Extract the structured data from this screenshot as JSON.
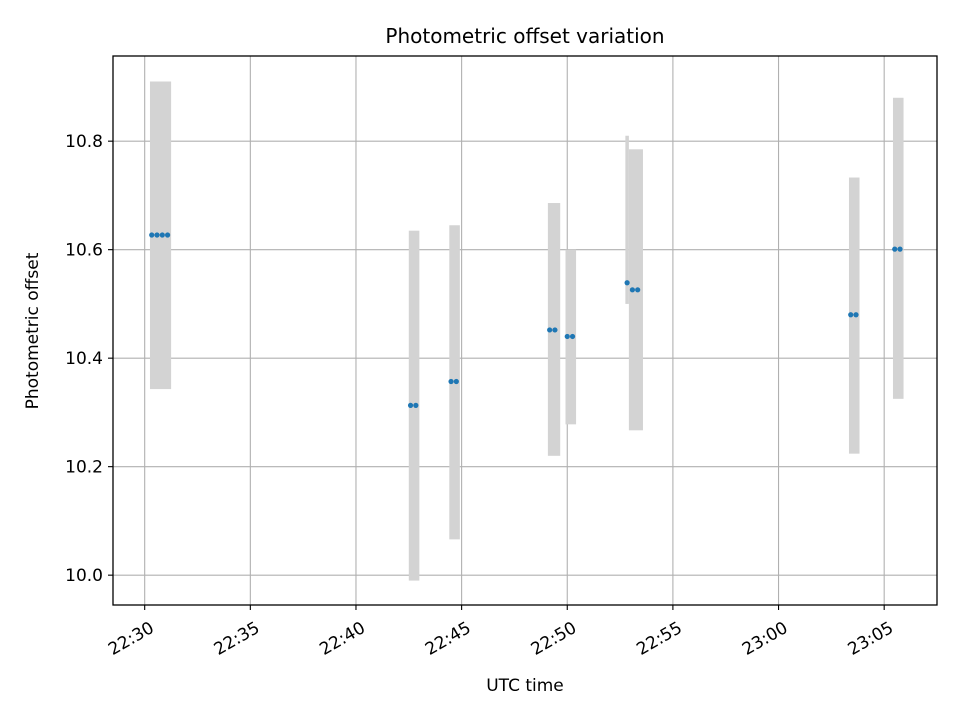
{
  "chart_data": {
    "type": "scatter",
    "title": "Photometric offset variation",
    "xlabel": "UTC time",
    "ylabel": "Photometric offset",
    "x_axis_type": "time",
    "xlim": [
      "22:28:30",
      "23:07:30"
    ],
    "ylim": [
      9.945,
      10.957
    ],
    "x_ticks": [
      "22:30",
      "22:35",
      "22:40",
      "22:45",
      "22:50",
      "22:55",
      "23:00",
      "23:05"
    ],
    "y_ticks": [
      "10.0",
      "10.2",
      "10.4",
      "10.6",
      "10.8"
    ],
    "grid": true,
    "colors": {
      "points": "#1f77b4",
      "uncertainty_band": "#d3d3d3"
    },
    "uncertainty_bands": [
      {
        "x_start": "22:30:15",
        "x_end": "22:31:15",
        "y_low": 10.343,
        "y_high": 10.91
      },
      {
        "x_start": "22:42:30",
        "x_end": "22:43:00",
        "y_low": 9.99,
        "y_high": 10.635
      },
      {
        "x_start": "22:44:25",
        "x_end": "22:44:55",
        "y_low": 10.066,
        "y_high": 10.645
      },
      {
        "x_start": "22:49:05",
        "x_end": "22:49:40",
        "y_low": 10.22,
        "y_high": 10.686
      },
      {
        "x_start": "22:49:55",
        "x_end": "22:50:25",
        "y_low": 10.278,
        "y_high": 10.6
      },
      {
        "x_start": "22:52:45",
        "x_end": "22:52:55",
        "y_low": 10.5,
        "y_high": 10.81
      },
      {
        "x_start": "22:52:55",
        "x_end": "22:53:35",
        "y_low": 10.267,
        "y_high": 10.785
      },
      {
        "x_start": "23:03:20",
        "x_end": "23:03:50",
        "y_low": 10.224,
        "y_high": 10.733
      },
      {
        "x_start": "23:05:25",
        "x_end": "23:05:55",
        "y_low": 10.325,
        "y_high": 10.88
      }
    ],
    "series": [
      {
        "x": [
          "22:30:20",
          "22:30:35",
          "22:30:50",
          "22:31:05",
          "22:42:35",
          "22:42:50",
          "22:44:30",
          "22:44:45",
          "22:49:10",
          "22:49:25",
          "22:50:00",
          "22:50:15",
          "22:52:50",
          "22:53:05",
          "22:53:20",
          "23:03:25",
          "23:03:40",
          "23:05:30",
          "23:05:45"
        ],
        "y": [
          10.627,
          10.627,
          10.627,
          10.627,
          10.313,
          10.313,
          10.357,
          10.357,
          10.452,
          10.452,
          10.44,
          10.44,
          10.539,
          10.526,
          10.526,
          10.48,
          10.48,
          10.601,
          10.601
        ]
      }
    ]
  }
}
